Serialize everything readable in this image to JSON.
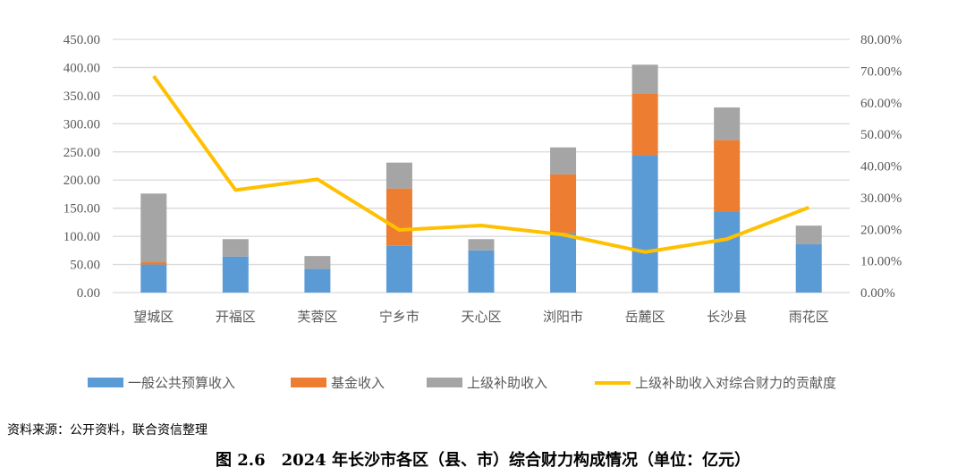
{
  "chart_data": {
    "type": "bar",
    "stacked": true,
    "title": "图 2.6　2024 年长沙市各区（县、市）综合财力构成情况（单位：亿元）",
    "categories": [
      "望城区",
      "开福区",
      "芙蓉区",
      "宁乡市",
      "天心区",
      "浏阳市",
      "岳麓区",
      "长沙县",
      "雨花区"
    ],
    "series": [
      {
        "name": "一般公共预算收入",
        "type": "bar",
        "axis": "left",
        "color": "#5B9BD5",
        "values": [
          50,
          64,
          42,
          83,
          75,
          106,
          244,
          144,
          86
        ]
      },
      {
        "name": "基金收入",
        "type": "bar",
        "axis": "left",
        "color": "#ED7D31",
        "values": [
          4,
          0,
          0,
          102,
          0,
          104,
          109,
          127,
          0
        ]
      },
      {
        "name": "上级补助收入",
        "type": "bar",
        "axis": "left",
        "color": "#A5A5A5",
        "values": [
          122,
          31,
          23,
          46,
          20,
          48,
          52,
          58,
          33
        ]
      },
      {
        "name": "上级补助收入对综合财力的贡献度",
        "type": "line",
        "axis": "right",
        "color": "#FFC000",
        "values": [
          68.4,
          32.4,
          35.8,
          19.8,
          21.2,
          18.3,
          12.8,
          16.9,
          26.9
        ]
      }
    ],
    "yleft": {
      "lim": [
        0,
        450
      ],
      "ticks": [
        "0.00",
        "50.00",
        "100.00",
        "150.00",
        "200.00",
        "250.00",
        "300.00",
        "350.00",
        "400.00",
        "450.00"
      ]
    },
    "yright": {
      "lim": [
        0,
        80
      ],
      "ticks": [
        "0.00%",
        "10.00%",
        "20.00%",
        "30.00%",
        "40.00%",
        "50.00%",
        "60.00%",
        "70.00%",
        "80.00%"
      ]
    },
    "grid": true,
    "legend": "bottom"
  },
  "source": "资料来源：公开资料，联合资信整理",
  "caption": "图 2.6　2024 年长沙市各区（县、市）综合财力构成情况（单位：亿元）"
}
